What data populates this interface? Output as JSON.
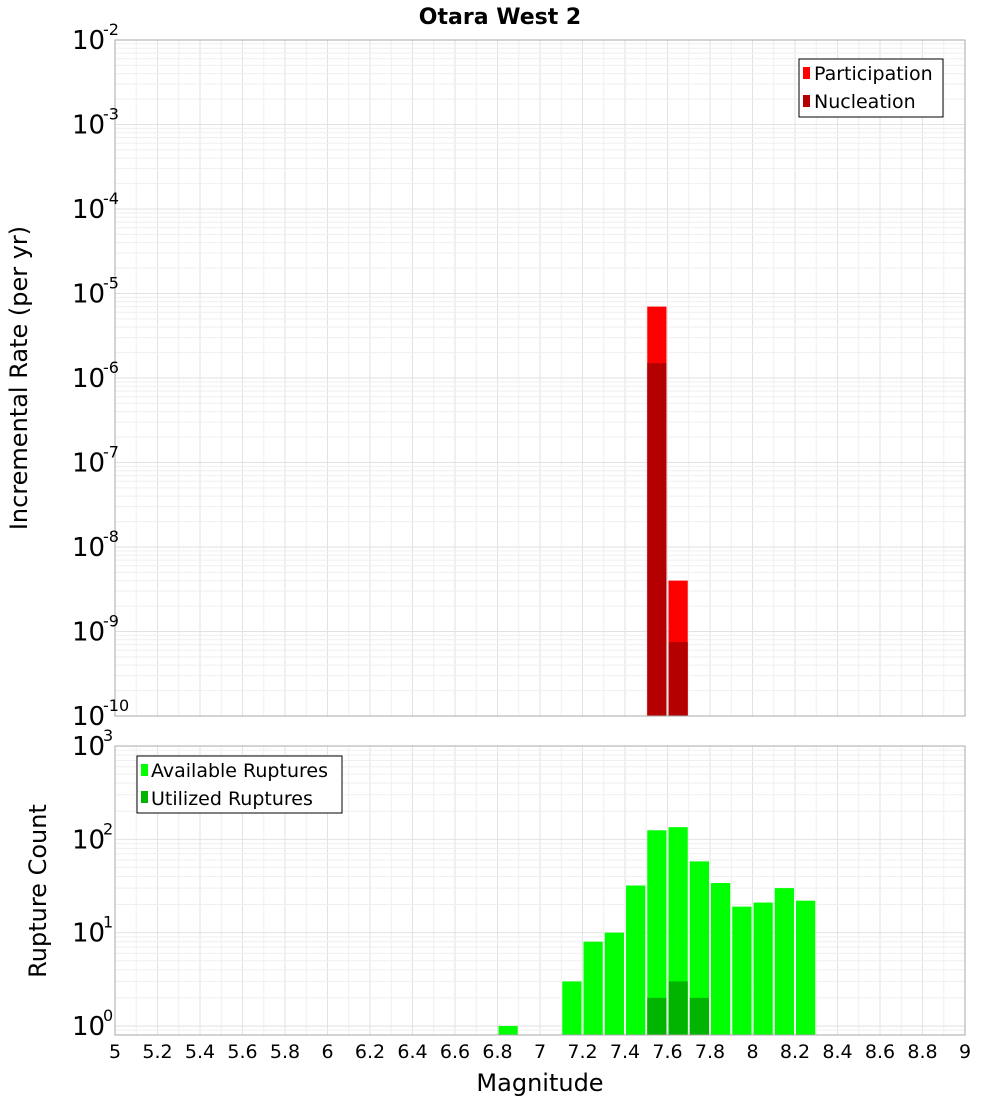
{
  "chart_data": [
    {
      "type": "bar",
      "title": "Otara West 2",
      "xlabel": "",
      "ylabel": "Incremental Rate (per yr)",
      "yscale": "log",
      "ylim": [
        1e-10,
        0.01
      ],
      "xlim": [
        5,
        9
      ],
      "bin_width": 0.1,
      "legend": {
        "position": "top-right",
        "entries": [
          "Participation",
          "Nucleation"
        ]
      },
      "series": [
        {
          "name": "Participation",
          "color": "#ff0000",
          "points": [
            {
              "x": 7.55,
              "y": 7e-06
            },
            {
              "x": 7.65,
              "y": 4e-09
            }
          ]
        },
        {
          "name": "Nucleation",
          "color": "#b40000",
          "points": [
            {
              "x": 7.55,
              "y": 1.5e-06
            },
            {
              "x": 7.65,
              "y": 7.5e-10
            }
          ]
        }
      ],
      "yticks": [
        {
          "base": "10",
          "exp": "-2"
        },
        {
          "base": "10",
          "exp": "-3"
        },
        {
          "base": "10",
          "exp": "-4"
        },
        {
          "base": "10",
          "exp": "-5"
        },
        {
          "base": "10",
          "exp": "-6"
        },
        {
          "base": "10",
          "exp": "-7"
        },
        {
          "base": "10",
          "exp": "-8"
        },
        {
          "base": "10",
          "exp": "-9"
        },
        {
          "base": "10",
          "exp": "-10"
        }
      ]
    },
    {
      "type": "bar",
      "title": "",
      "xlabel": "Magnitude",
      "ylabel": "Rupture Count",
      "yscale": "log",
      "ylim": [
        0.8,
        1000
      ],
      "xlim": [
        5,
        9
      ],
      "bin_width": 0.1,
      "legend": {
        "position": "top-left",
        "entries": [
          "Available Ruptures",
          "Utilized Ruptures"
        ]
      },
      "series": [
        {
          "name": "Available Ruptures",
          "color": "#00ff00",
          "points": [
            {
              "x": 6.85,
              "y": 1
            },
            {
              "x": 7.15,
              "y": 3
            },
            {
              "x": 7.25,
              "y": 8
            },
            {
              "x": 7.35,
              "y": 10
            },
            {
              "x": 7.45,
              "y": 32
            },
            {
              "x": 7.55,
              "y": 125
            },
            {
              "x": 7.65,
              "y": 135
            },
            {
              "x": 7.75,
              "y": 58
            },
            {
              "x": 7.85,
              "y": 34
            },
            {
              "x": 7.95,
              "y": 19
            },
            {
              "x": 8.05,
              "y": 21
            },
            {
              "x": 8.15,
              "y": 30
            },
            {
              "x": 8.25,
              "y": 22
            }
          ]
        },
        {
          "name": "Utilized Ruptures",
          "color": "#00b400",
          "points": [
            {
              "x": 7.55,
              "y": 2
            },
            {
              "x": 7.65,
              "y": 3
            },
            {
              "x": 7.75,
              "y": 2
            }
          ]
        }
      ],
      "yticks": [
        {
          "base": "10",
          "exp": "3"
        },
        {
          "base": "10",
          "exp": "2"
        },
        {
          "base": "10",
          "exp": "1"
        },
        {
          "base": "10",
          "exp": "0"
        }
      ],
      "xticks": [
        "5",
        "5.2",
        "5.4",
        "5.6",
        "5.8",
        "6",
        "6.2",
        "6.4",
        "6.6",
        "6.8",
        "7",
        "7.2",
        "7.4",
        "7.6",
        "7.8",
        "8",
        "8.2",
        "8.4",
        "8.6",
        "8.8",
        "9"
      ]
    }
  ]
}
